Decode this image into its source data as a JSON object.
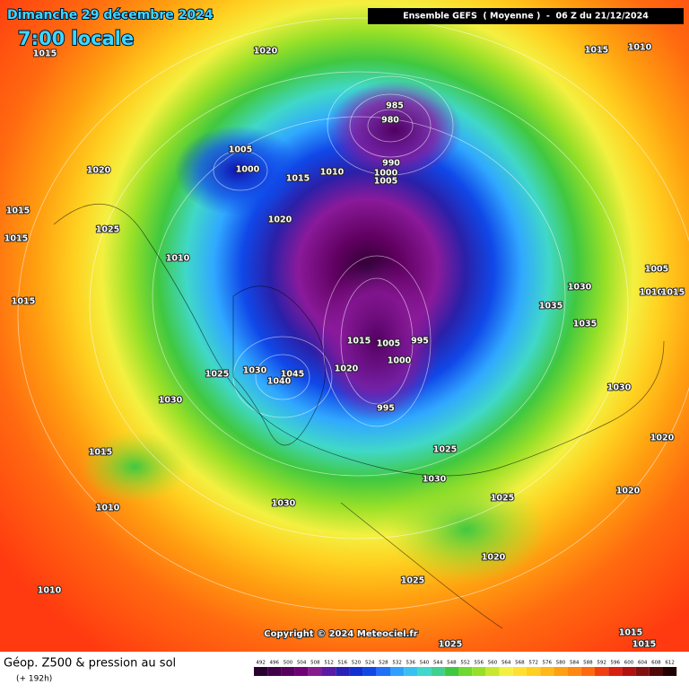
{
  "header": {
    "date": "Dimanche 29 décembre 2024",
    "time": "7:00 locale",
    "model": "Ensemble GEFS  ( Moyenne )  -  06 Z du 21/12/2024"
  },
  "map": {
    "pressure_labels": [
      1015,
      1020,
      1015,
      1010,
      985,
      980,
      1005,
      1000,
      990,
      1010,
      1000,
      1015,
      1005,
      1020,
      1015,
      1025,
      1015,
      1020,
      1010,
      1005,
      1030,
      1015,
      1010,
      1015,
      1035,
      1035,
      1015,
      1005,
      995,
      1000,
      1020,
      1030,
      1045,
      1025,
      1040,
      1030,
      1030,
      995,
      1020,
      1025,
      1015,
      1030,
      1020,
      1025,
      1010,
      1030,
      1020,
      1025,
      1010,
      1015,
      1025,
      1015
    ],
    "copyright": "Copyright © 2024 Meteociel.fr"
  },
  "footer": {
    "title": "Géop. Z500 & pression au sol",
    "lead": "(+ 192h)"
  },
  "legend": {
    "scale": [
      492,
      496,
      500,
      504,
      508,
      512,
      516,
      520,
      524,
      528,
      532,
      536,
      540,
      544,
      548,
      552,
      556,
      560,
      564,
      568,
      572,
      576,
      580,
      584,
      588,
      592,
      596,
      600,
      604,
      608,
      612
    ]
  }
}
